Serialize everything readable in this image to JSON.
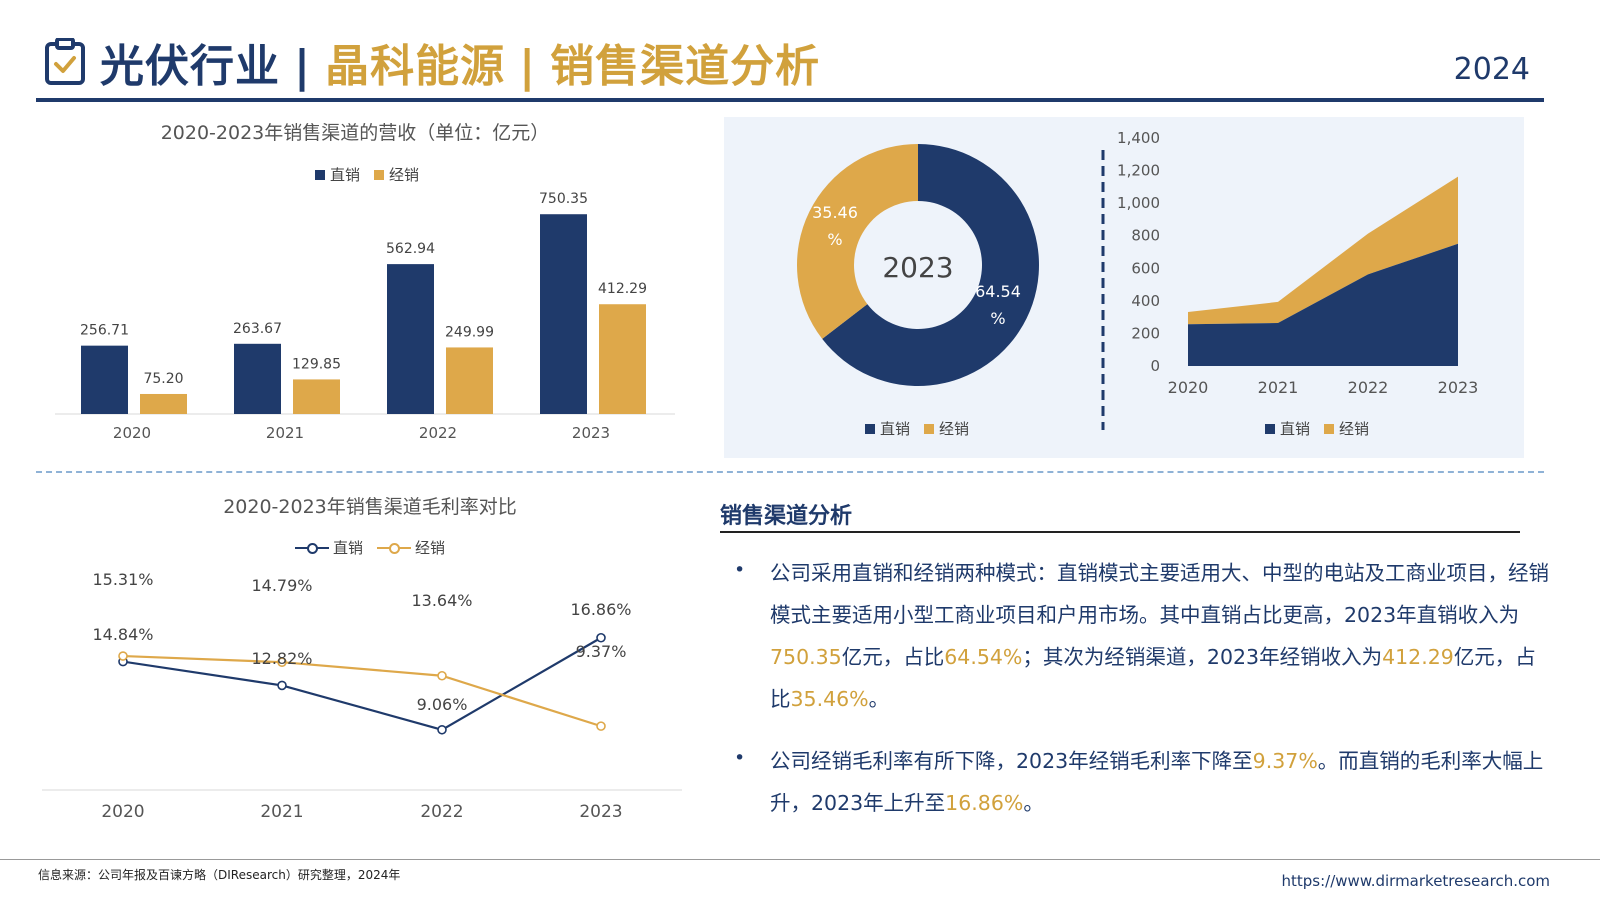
{
  "header": {
    "title_main": "光伏行业",
    "separator": "|",
    "title_company": "晶科能源",
    "title_topic": "销售渠道分析",
    "year": "2024",
    "icon": "clipboard-check-icon"
  },
  "colors": {
    "navy": "#1f3a6b",
    "gold": "#dea84a",
    "panel": "#eef3fa"
  },
  "chart_data": [
    {
      "type": "bar",
      "title": "2020-2023年销售渠道的营收（单位：亿元）",
      "categories": [
        "2020",
        "2021",
        "2022",
        "2023"
      ],
      "series": [
        {
          "name": "直销",
          "values": [
            256.71,
            263.67,
            562.94,
            750.35
          ],
          "labels": [
            "256.71",
            "263.67",
            "562.94",
            "750.35"
          ]
        },
        {
          "name": "经销",
          "values": [
            75.2,
            129.85,
            249.99,
            412.29
          ],
          "labels": [
            "75.20",
            "129.85",
            "249.99",
            "412.29"
          ]
        }
      ],
      "ylim": [
        0,
        800
      ],
      "legend": "top-center"
    },
    {
      "type": "pie",
      "style": "donut",
      "center_label": "2023",
      "slices": [
        {
          "name": "直销",
          "value": 64.54,
          "label_line1": "64.54",
          "label_line2": "%"
        },
        {
          "name": "经销",
          "value": 35.46,
          "label_line1": "35.46",
          "label_line2": "%"
        }
      ],
      "legend": "bottom"
    },
    {
      "type": "area",
      "stacked": true,
      "categories": [
        "2020",
        "2021",
        "2022",
        "2023"
      ],
      "series": [
        {
          "name": "直销",
          "values": [
            256.71,
            263.67,
            562.94,
            750.35
          ]
        },
        {
          "name": "经销",
          "values": [
            75.2,
            129.85,
            249.99,
            412.29
          ]
        }
      ],
      "ylim": [
        0,
        1400
      ],
      "yticks": [
        "0",
        "200",
        "400",
        "600",
        "800",
        "1,000",
        "1,200",
        "1,400"
      ],
      "legend": "bottom"
    },
    {
      "type": "line",
      "title": "2020-2023年销售渠道毛利率对比",
      "categories": [
        "2020",
        "2021",
        "2022",
        "2023"
      ],
      "series": [
        {
          "name": "直销",
          "values": [
            14.84,
            12.82,
            9.06,
            16.86
          ],
          "labels": [
            "14.84%",
            "12.82%",
            "9.06%",
            "16.86%"
          ]
        },
        {
          "name": "经销",
          "values": [
            15.31,
            14.79,
            13.64,
            9.37
          ],
          "labels": [
            "15.31%",
            "14.79%",
            "13.64%",
            "9.37%"
          ]
        }
      ],
      "legend": "top-center"
    }
  ],
  "analysis": {
    "title": "销售渠道分析",
    "p1": {
      "t1": "公司采用直销和经销两种模式：直销模式主要适用大、中型的电站及工商业项目，经销模式主要适用小型工商业项目和户用市场。其中直销占比更高，2023年直销收入为",
      "h1": "750.35",
      "t2": "亿元，占比",
      "h2": "64.54%",
      "t3": "；其次为经销渠道，2023年经销收入为",
      "h3": "412.29",
      "t4": "亿元，占比",
      "h4": "35.46%",
      "t5": "。"
    },
    "p2": {
      "t1": "公司经销毛利率有所下降，2023年经销毛利率下降至",
      "h1": "9.37%",
      "t2": "。而直销的毛利率大幅上升，2023年上升至",
      "h2": "16.86%",
      "t3": "。"
    },
    "bullet": "•"
  },
  "footer": {
    "source": "信息来源：公司年报及百谏方略（DIResearch）研究整理，2024年",
    "url": "https://www.dirmarketresearch.com"
  }
}
